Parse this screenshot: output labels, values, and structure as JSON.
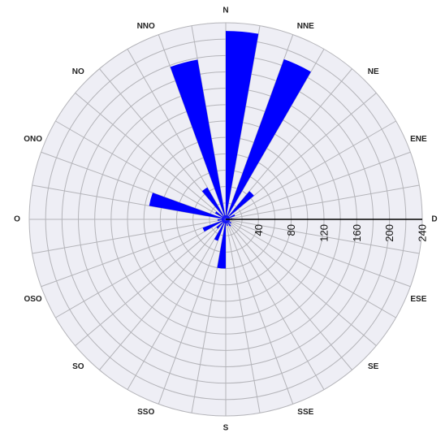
{
  "chart_data": {
    "type": "bar",
    "subtype": "polar-rose",
    "title": "",
    "directions": [
      "N",
      "NNE",
      "NE",
      "ENE",
      "D",
      "ESE",
      "SE",
      "SSE",
      "S",
      "SSO",
      "SO",
      "OSO",
      "O",
      "ONO",
      "NO",
      "NNO"
    ],
    "radial_ticks": [
      "40",
      "80",
      "120",
      "160",
      "200",
      "240"
    ],
    "radial_tick_values": [
      40,
      80,
      120,
      160,
      200,
      240
    ],
    "rmax": 240,
    "grid": true,
    "sector_count": 36,
    "sector_width_deg": 10,
    "sector_start_deg": [
      0,
      10,
      20,
      30,
      40,
      50,
      60,
      70,
      80,
      90,
      100,
      110,
      120,
      130,
      140,
      150,
      160,
      170,
      180,
      190,
      200,
      210,
      220,
      230,
      240,
      250,
      260,
      270,
      280,
      290,
      300,
      310,
      320,
      330,
      340,
      350
    ],
    "values": [
      230,
      5,
      208,
      5,
      45,
      5,
      12,
      5,
      8,
      5,
      5,
      5,
      8,
      5,
      10,
      5,
      8,
      5,
      60,
      5,
      28,
      5,
      15,
      5,
      30,
      5,
      10,
      5,
      95,
      5,
      15,
      5,
      45,
      5,
      198,
      5
    ],
    "colors": {
      "bar": "#0000ff",
      "face": "#eeeef5",
      "grid": "#b4b4b9",
      "axis": "#000000"
    }
  }
}
